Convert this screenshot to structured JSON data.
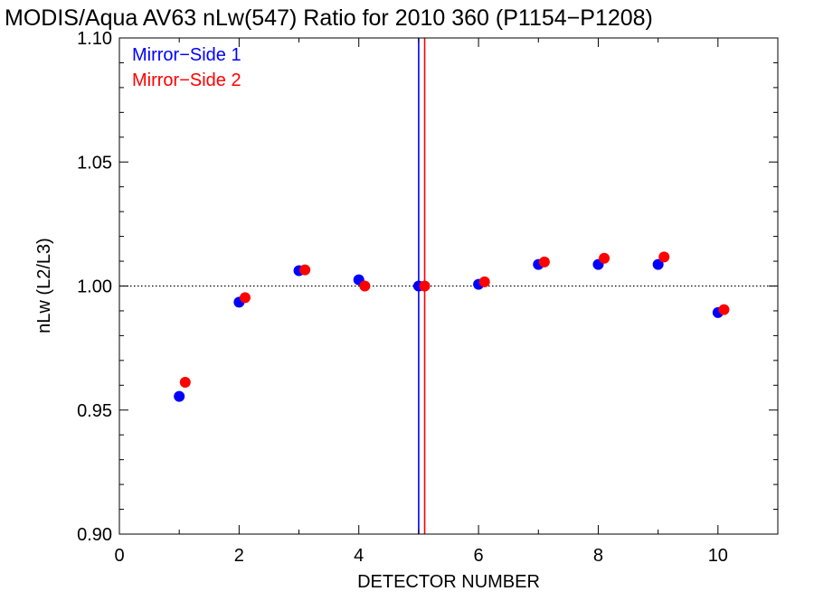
{
  "chart_data": {
    "type": "scatter",
    "title": "MODIS/Aqua AV63 nLw(547) Ratio for 2010 360 (P1154−P1208)",
    "xlabel": "DETECTOR NUMBER",
    "ylabel": "nLw (L2/L3)",
    "xlim": [
      0,
      11
    ],
    "ylim": [
      0.9,
      1.1
    ],
    "x_ticks": [
      "0",
      "2",
      "4",
      "6",
      "8",
      "10"
    ],
    "y_ticks": [
      "0.90",
      "0.95",
      "1.00",
      "1.05",
      "1.10"
    ],
    "reference_line_y": 1.0,
    "grid": false,
    "legend_position": "top-left",
    "series": [
      {
        "name": "Mirror−Side 1",
        "color": "#0000ff",
        "x": [
          1,
          2,
          3,
          4,
          5,
          6,
          7,
          8,
          9,
          10
        ],
        "values": [
          0.9555,
          0.9935,
          1.0062,
          1.0025,
          1.0,
          1.0007,
          1.0087,
          1.0087,
          1.0087,
          0.9893
        ],
        "vertical_line_x": 5.0
      },
      {
        "name": "Mirror−Side 2",
        "color": "#ff0000",
        "x": [
          1.1,
          2.1,
          3.1,
          4.1,
          5.1,
          6.1,
          7.1,
          8.1,
          9.1,
          10.1
        ],
        "values": [
          0.9612,
          0.9953,
          1.0065,
          1.0,
          1.0,
          1.0017,
          1.0097,
          1.0112,
          1.0117,
          0.9905
        ],
        "vertical_line_x": 5.1
      }
    ]
  }
}
